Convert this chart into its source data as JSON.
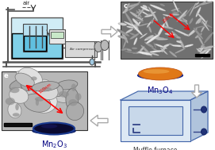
{
  "bg_color": "#ffffff",
  "mn3o4_label": "Mn$_3$O$_4$",
  "mn2o3_label": "Mn$_2$O$_3$",
  "muffle_label": "Muffle furnace",
  "air_label": "air",
  "air_compressor_label": "Air compressor",
  "disk_orange_color": "#e07818",
  "disk_dark_color": "#0a0a30",
  "disk_rim_color": "#1a3a90",
  "label_color": "#000080",
  "sem1_bg": "#888888",
  "sem2_bg": "#c0c0c0",
  "arrow_edge": "#aaaaaa",
  "figure_size": [
    2.71,
    1.89
  ],
  "dpi": 100
}
